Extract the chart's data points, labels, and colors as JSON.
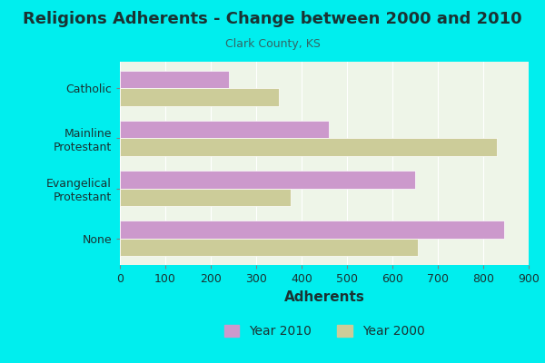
{
  "title": "Religions Adherents - Change between 2000 and 2010",
  "subtitle": "Clark County, KS",
  "xlabel": "Adherents",
  "categories": [
    "None",
    "Evangelical\nProtestant",
    "Mainline\nProtestant",
    "Catholic"
  ],
  "year2010": [
    845,
    650,
    460,
    240
  ],
  "year2000": [
    655,
    375,
    830,
    350
  ],
  "color2010": "#cc99cc",
  "color2000": "#cccc99",
  "background_outer": "#00eeee",
  "background_inner": "#eef5e8",
  "xlim": [
    0,
    900
  ],
  "xticks": [
    0,
    100,
    200,
    300,
    400,
    500,
    600,
    700,
    800,
    900
  ],
  "legend_labels": [
    "Year 2010",
    "Year 2000"
  ],
  "title_fontsize": 13,
  "subtitle_fontsize": 9,
  "xlabel_fontsize": 11,
  "tick_fontsize": 9,
  "ylabel_fontsize": 9,
  "title_color": "#1a3333",
  "subtitle_color": "#336666"
}
